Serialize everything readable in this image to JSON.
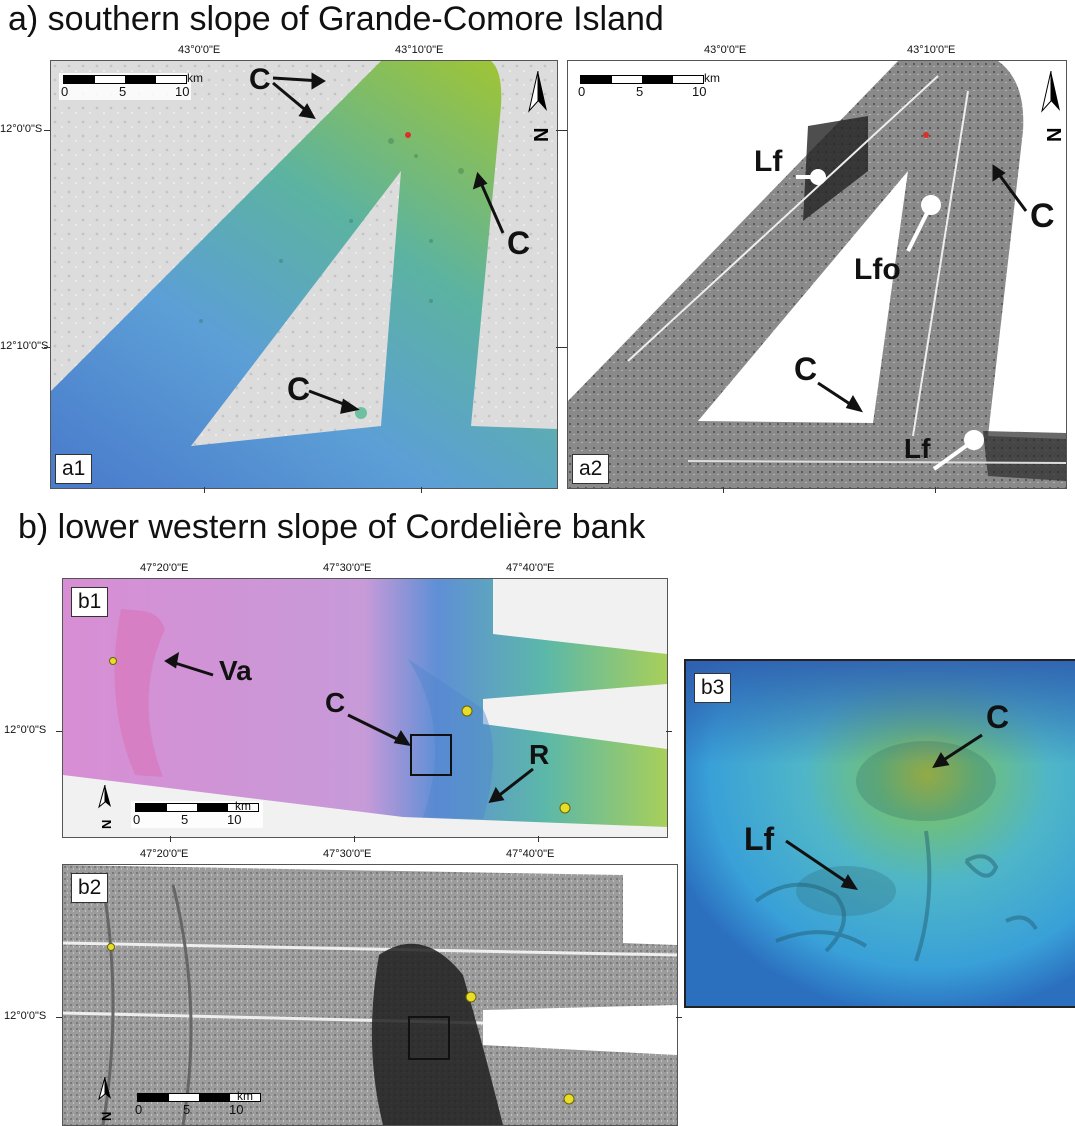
{
  "section_a": {
    "title": "a) southern slope of Grande-Comore Island",
    "lon_labels": [
      "43°0'0\"E",
      "43°10'0\"E"
    ],
    "lat_labels": [
      "12°0'0\"S",
      "12°10'0\"S"
    ],
    "a1": {
      "label": "a1",
      "annotations": [
        "C",
        "C",
        "C"
      ]
    },
    "a2": {
      "label": "a2",
      "annotations": [
        "Lf",
        "C",
        "Lfo",
        "C",
        "Lf"
      ]
    },
    "scale": {
      "ticks": [
        "0",
        "5",
        "10"
      ],
      "unit": "km"
    },
    "north_label": "N"
  },
  "section_b": {
    "title": "b) lower western slope of Cordelière bank",
    "lon_labels": [
      "47°20'0\"E",
      "47°30'0\"E",
      "47°40'0\"E"
    ],
    "lat_label": "12°0'0\"S",
    "b1": {
      "label": "b1",
      "annotations": [
        "Va",
        "C",
        "R"
      ]
    },
    "b2": {
      "label": "b2"
    },
    "b3": {
      "label": "b3",
      "annotations": [
        "C",
        "Lf"
      ]
    },
    "scale": {
      "ticks": [
        "0",
        "5",
        "10"
      ],
      "unit": "km"
    },
    "north_label": "N"
  },
  "colors": {
    "hillshade": "#d9d9d9",
    "bathy_shallow": "#8fc23a",
    "bathy_deep": "#4f86cf",
    "b1_deep": "#d78ad0",
    "b1_shallow": "#8fcf6a",
    "marker_yellow": "#e6de2a",
    "marker_red": "#d8322a"
  }
}
